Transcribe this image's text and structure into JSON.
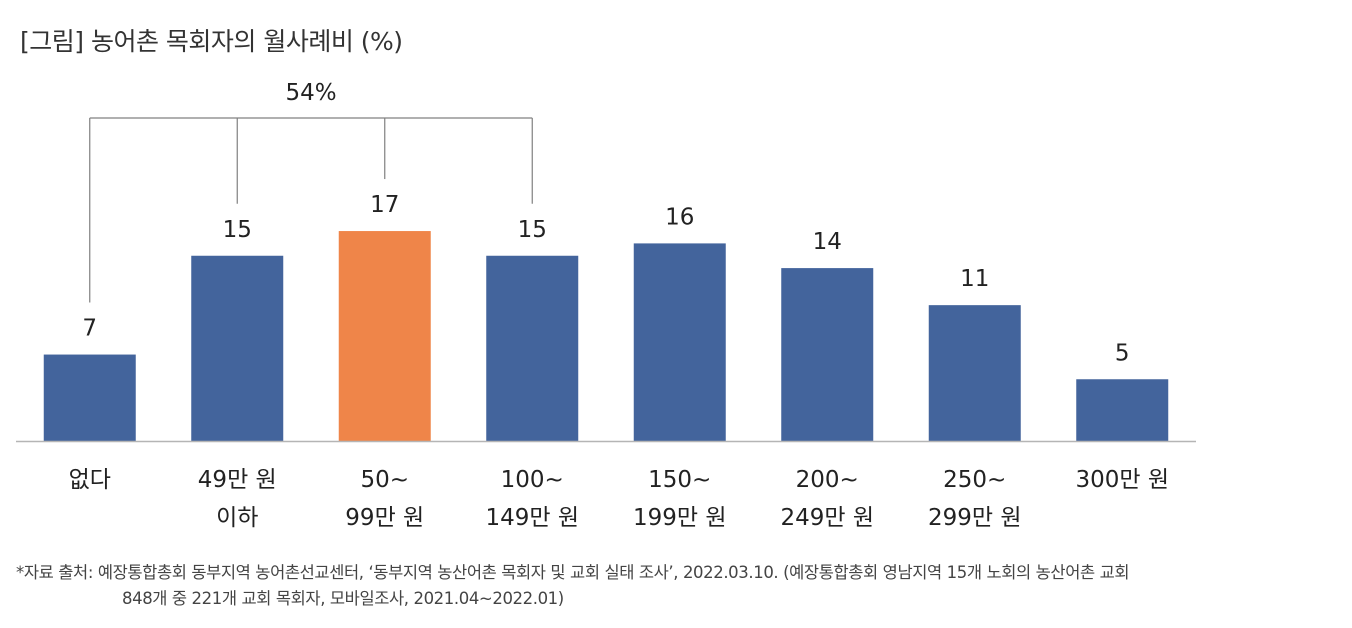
{
  "title": "[그림] 농어촌 목회자의 월사례비 (%)",
  "chart_data": {
    "type": "bar",
    "title": "[그림] 농어촌 목회자의 월사례비 (%)",
    "categories": [
      [
        "없다"
      ],
      [
        "49만 원",
        "이하"
      ],
      [
        "50~",
        "99만 원"
      ],
      [
        "100~",
        "149만 원"
      ],
      [
        "150~",
        "199만 원"
      ],
      [
        "200~",
        "249만 원"
      ],
      [
        "250~",
        "299만 원"
      ],
      [
        "300만 원"
      ]
    ],
    "values": [
      7,
      15,
      17,
      15,
      16,
      14,
      11,
      5
    ],
    "highlight_index": 2,
    "ylim": [
      0,
      30
    ],
    "xlabel": "",
    "ylabel": "",
    "grid": false,
    "annotation": {
      "label": "54%",
      "span_indices": [
        0,
        1,
        2,
        3
      ]
    },
    "colors": {
      "bar": "#43649c",
      "highlight": "#ef8549",
      "axis": "#b5b5b5",
      "bracket": "#808080"
    }
  },
  "source": {
    "line1": "*자료 출처: 예장통합총회 동부지역 농어촌선교센터, ‘동부지역 농산어촌 목회자 및 교회 실태 조사’, 2022.03.10. (예장통합총회 영남지역 15개 노회의 농산어촌 교회",
    "line2": "848개 중 221개 교회 목회자, 모바일조사, 2021.04~2022.01)"
  }
}
